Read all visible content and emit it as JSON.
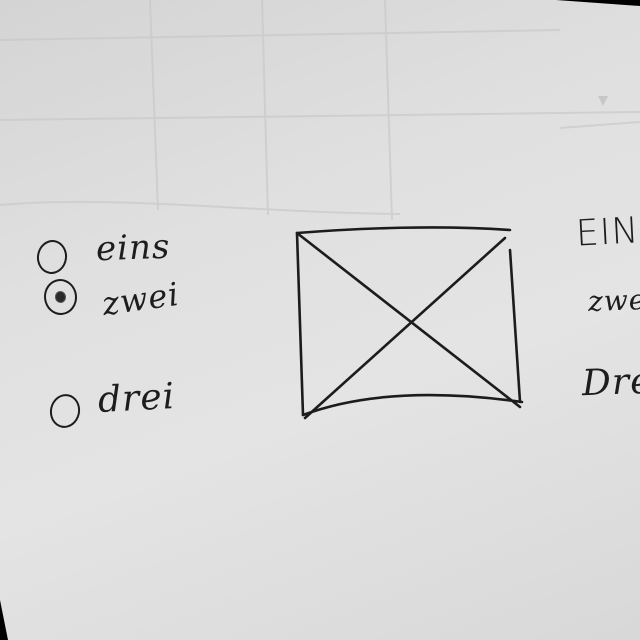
{
  "radio_group": {
    "options": [
      {
        "label": "eins",
        "selected": false
      },
      {
        "label": "zwei",
        "selected": true
      },
      {
        "label": "drei",
        "selected": false
      }
    ]
  },
  "image_placeholder": {
    "kind": "crossed-box"
  },
  "right_column": {
    "items": [
      "EIN",
      "zwe",
      "Dre"
    ]
  }
}
